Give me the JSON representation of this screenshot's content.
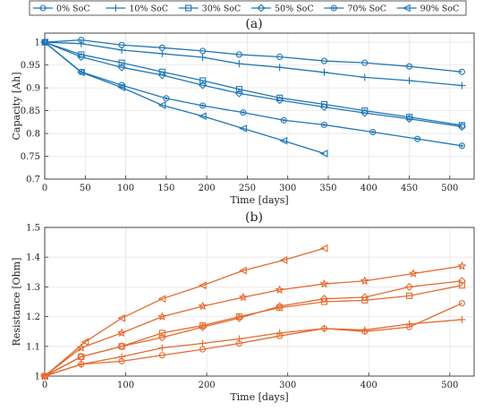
{
  "colors": {
    "capacity": "#1f77b4",
    "resistance": "#e36a2e"
  },
  "legend": {
    "placement": "top",
    "entries": [
      {
        "label": "0% SoC",
        "marker": "circle"
      },
      {
        "label": "10% SoC",
        "marker": "plus"
      },
      {
        "label": "30% SoC",
        "marker": "square"
      },
      {
        "label": "50% SoC",
        "marker": "diamond"
      },
      {
        "label": "70% SoC",
        "marker": "dot-circle"
      },
      {
        "label": "90% SoC",
        "marker": "triangle-left"
      }
    ]
  },
  "chart_data": [
    {
      "type": "line",
      "panel_label": "(a)",
      "xlabel": "Time [days]",
      "ylabel": "Capacity [Ah]",
      "xlim": [
        0,
        530
      ],
      "ylim": [
        0.7,
        1.02
      ],
      "xticks": [
        0,
        50,
        100,
        150,
        200,
        250,
        300,
        350,
        400,
        450,
        500
      ],
      "yticks": [
        0.7,
        0.75,
        0.8,
        0.85,
        0.9,
        0.95,
        1
      ],
      "ytick_labels": [
        "0.7",
        "0.75",
        "0.8",
        "0.85",
        "0.9",
        "0.95",
        "1"
      ],
      "grid": true,
      "series": [
        {
          "name": "0% SoC",
          "marker": "circle",
          "x": [
            0,
            45,
            95,
            145,
            195,
            240,
            290,
            345,
            395,
            450,
            515
          ],
          "y": [
            1.0,
            1.005,
            0.994,
            0.988,
            0.981,
            0.973,
            0.968,
            0.959,
            0.955,
            0.947,
            0.935
          ]
        },
        {
          "name": "10% SoC",
          "marker": "plus",
          "x": [
            0,
            45,
            95,
            145,
            195,
            240,
            290,
            345,
            395,
            450,
            515
          ],
          "y": [
            1.0,
            0.997,
            0.983,
            0.975,
            0.967,
            0.953,
            0.945,
            0.934,
            0.923,
            0.916,
            0.905
          ]
        },
        {
          "name": "30% SoC",
          "marker": "square",
          "x": [
            0,
            45,
            95,
            145,
            195,
            240,
            290,
            345,
            395,
            450,
            515
          ],
          "y": [
            1.0,
            0.973,
            0.955,
            0.935,
            0.916,
            0.897,
            0.878,
            0.864,
            0.85,
            0.836,
            0.818
          ]
        },
        {
          "name": "50% SoC",
          "marker": "diamond",
          "x": [
            0,
            45,
            95,
            145,
            195,
            240,
            290,
            345,
            395,
            450,
            515
          ],
          "y": [
            1.0,
            0.968,
            0.945,
            0.928,
            0.906,
            0.888,
            0.873,
            0.858,
            0.845,
            0.832,
            0.815
          ]
        },
        {
          "name": "70% SoC",
          "marker": "dot-circle",
          "x": [
            0,
            45,
            95,
            150,
            195,
            245,
            295,
            345,
            405,
            460,
            515
          ],
          "y": [
            1.0,
            0.935,
            0.906,
            0.877,
            0.861,
            0.846,
            0.829,
            0.819,
            0.803,
            0.788,
            0.773
          ]
        },
        {
          "name": "90% SoC",
          "marker": "triangle-left",
          "x": [
            0,
            45,
            95,
            145,
            195,
            245,
            295,
            345
          ],
          "y": [
            1.0,
            0.934,
            0.901,
            0.862,
            0.838,
            0.811,
            0.784,
            0.756
          ]
        }
      ]
    },
    {
      "type": "line",
      "panel_label": "(b)",
      "xlabel": "Time [days]",
      "ylabel": "Resistance [Ohm]",
      "xlim": [
        0,
        530
      ],
      "ylim": [
        1.0,
        1.5
      ],
      "xticks": [
        0,
        100,
        200,
        300,
        400,
        500
      ],
      "yticks": [
        1.0,
        1.1,
        1.2,
        1.3,
        1.4,
        1.5
      ],
      "ytick_labels": [
        "1",
        "1.1",
        "1.2",
        "1.3",
        "1.4",
        "1.5"
      ],
      "grid": true,
      "series": [
        {
          "marker": "plus",
          "x": [
            0,
            45,
            95,
            145,
            195,
            240,
            290,
            345,
            395,
            450,
            515
          ],
          "y": [
            1.0,
            1.04,
            1.065,
            1.095,
            1.11,
            1.125,
            1.145,
            1.16,
            1.155,
            1.175,
            1.19
          ]
        },
        {
          "marker": "circle",
          "x": [
            0,
            45,
            95,
            145,
            195,
            240,
            290,
            345,
            395,
            450,
            515
          ],
          "y": [
            1.0,
            1.04,
            1.05,
            1.07,
            1.09,
            1.11,
            1.135,
            1.16,
            1.15,
            1.165,
            1.245
          ]
        },
        {
          "marker": "square",
          "x": [
            0,
            45,
            95,
            145,
            195,
            240,
            290,
            345,
            395,
            450,
            515
          ],
          "y": [
            1.0,
            1.065,
            1.1,
            1.145,
            1.17,
            1.2,
            1.23,
            1.25,
            1.255,
            1.27,
            1.305
          ]
        },
        {
          "marker": "diamond",
          "x": [
            0,
            45,
            95,
            145,
            195,
            240,
            290,
            345,
            395,
            450,
            515
          ],
          "y": [
            1.0,
            1.065,
            1.1,
            1.13,
            1.165,
            1.195,
            1.235,
            1.26,
            1.265,
            1.3,
            1.32
          ]
        },
        {
          "marker": "star",
          "x": [
            0,
            45,
            95,
            145,
            195,
            245,
            290,
            345,
            395,
            455,
            515
          ],
          "y": [
            1.0,
            1.095,
            1.145,
            1.2,
            1.235,
            1.265,
            1.29,
            1.31,
            1.32,
            1.345,
            1.37
          ]
        },
        {
          "marker": "triangle-left",
          "x": [
            0,
            50,
            95,
            145,
            195,
            245,
            295,
            345
          ],
          "y": [
            1.0,
            1.115,
            1.195,
            1.26,
            1.305,
            1.355,
            1.39,
            1.43
          ]
        }
      ]
    }
  ]
}
